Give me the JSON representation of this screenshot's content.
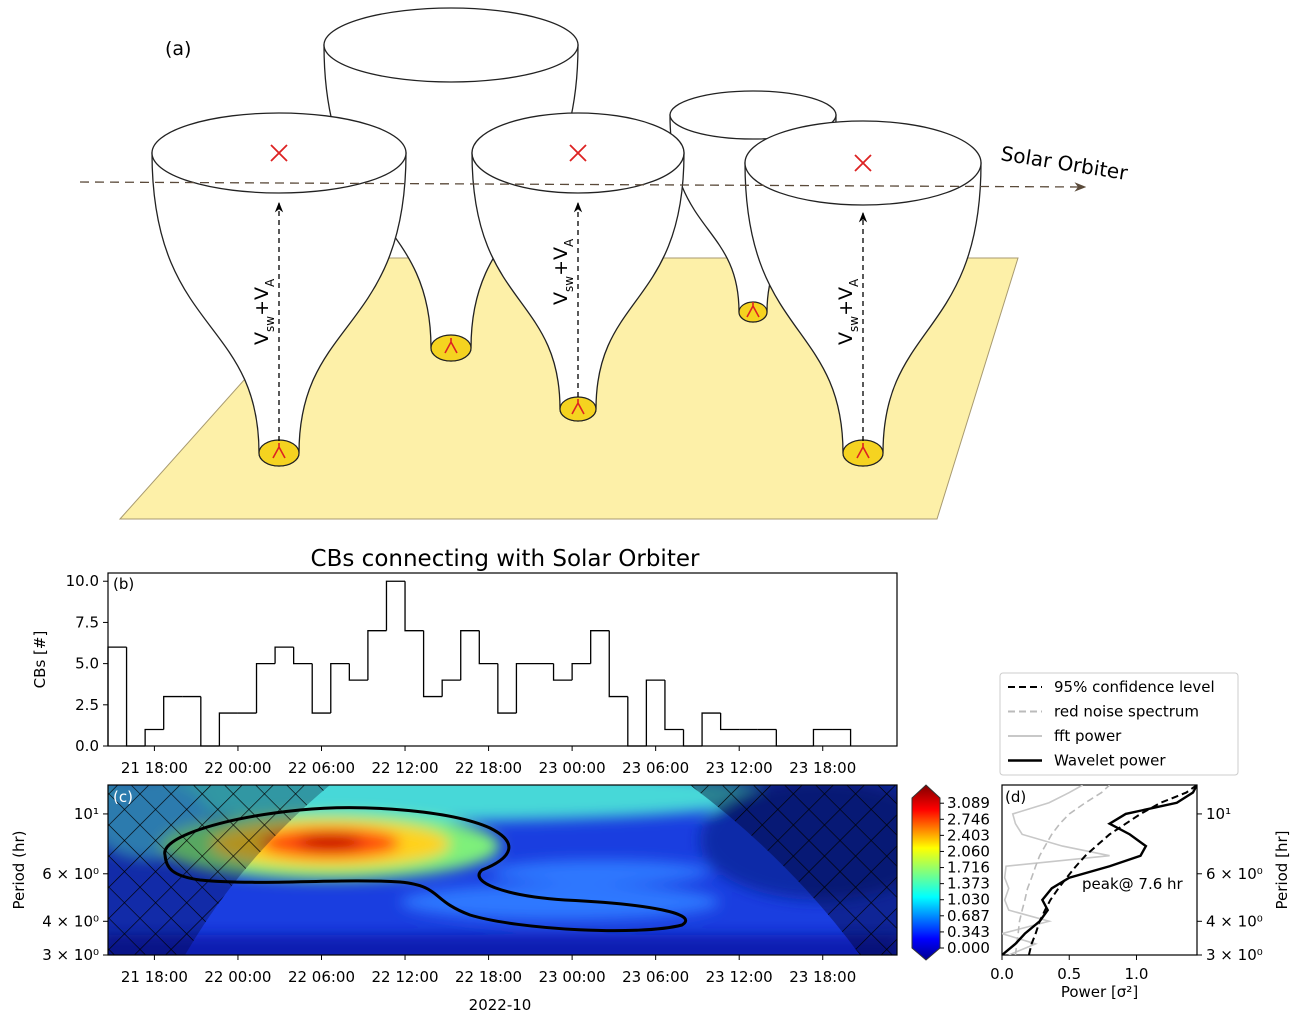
{
  "diagram": {
    "panel_label": "(a)",
    "arrow_label": "Solar Orbiter",
    "velocity_label": [
      "V",
      "sw",
      "+V",
      "A"
    ]
  },
  "chart_data": [
    {
      "type": "histogram",
      "panel_label": "(b)",
      "title": "CBs connecting with Solar Orbiter",
      "ylabel": "CBs [#]",
      "color": "#000000",
      "bins": [
        "2022-10-21 14:40",
        "2022-10-21 16:00",
        "2022-10-21 17:20",
        "2022-10-21 18:40",
        "2022-10-21 20:00",
        "2022-10-21 21:20",
        "2022-10-21 22:40",
        "2022-10-22 00:00",
        "2022-10-22 01:20",
        "2022-10-22 02:40",
        "2022-10-22 04:00",
        "2022-10-22 05:20",
        "2022-10-22 06:40",
        "2022-10-22 08:00",
        "2022-10-22 09:20",
        "2022-10-22 10:40",
        "2022-10-22 12:00",
        "2022-10-22 13:20",
        "2022-10-22 14:40",
        "2022-10-22 16:00",
        "2022-10-22 17:20",
        "2022-10-22 18:40",
        "2022-10-22 20:00",
        "2022-10-22 21:20",
        "2022-10-22 22:40",
        "2022-10-23 00:00",
        "2022-10-23 01:20",
        "2022-10-23 02:40",
        "2022-10-23 04:00",
        "2022-10-23 05:20",
        "2022-10-23 06:40",
        "2022-10-23 08:00",
        "2022-10-23 09:20",
        "2022-10-23 10:40",
        "2022-10-23 12:00",
        "2022-10-23 13:20",
        "2022-10-23 14:40",
        "2022-10-23 16:00",
        "2022-10-23 17:20",
        "2022-10-23 18:40",
        "2022-10-23 20:00"
      ],
      "counts": [
        6,
        0,
        1,
        3,
        3,
        0,
        2,
        2,
        5,
        6,
        5,
        2,
        5,
        4,
        7,
        10,
        7,
        3,
        4,
        7,
        5,
        2,
        5,
        5,
        4,
        5,
        7,
        3,
        0,
        4,
        1,
        0,
        2,
        1,
        1,
        1,
        0,
        0,
        1,
        1
      ],
      "xlim": [
        "2022-10-21 14:40",
        "2022-10-23 23:20"
      ],
      "xticks": [
        {
          "value": "2022-10-21 18:00",
          "label": "21 18:00"
        },
        {
          "value": "2022-10-22 00:00",
          "label": "22 00:00"
        },
        {
          "value": "2022-10-22 06:00",
          "label": "22 06:00"
        },
        {
          "value": "2022-10-22 12:00",
          "label": "22 12:00"
        },
        {
          "value": "2022-10-22 18:00",
          "label": "22 18:00"
        },
        {
          "value": "2022-10-23 00:00",
          "label": "23 00:00"
        },
        {
          "value": "2022-10-23 06:00",
          "label": "23 06:00"
        },
        {
          "value": "2022-10-23 12:00",
          "label": "23 12:00"
        },
        {
          "value": "2022-10-23 18:00",
          "label": "23 18:00"
        }
      ],
      "ylim": [
        0,
        10.5
      ],
      "yticks": [
        {
          "value": 0,
          "label": "0.0"
        },
        2.5,
        {
          "value": 5,
          "label": "5.0"
        },
        7.5,
        {
          "value": 10,
          "label": "10.0"
        }
      ]
    },
    {
      "type": "wavelet",
      "panel_label": "(c)",
      "ylabel": "Period (hr)",
      "xlabel": "2022-10",
      "log_y": true,
      "colormap": "jet",
      "xlim": [
        "2022-10-21 14:40",
        "2022-10-23 23:20"
      ],
      "xticks": [
        {
          "value": "2022-10-21 18:00",
          "label": "21 18:00"
        },
        {
          "value": "2022-10-22 00:00",
          "label": "22 00:00"
        },
        {
          "value": "2022-10-22 06:00",
          "label": "22 06:00"
        },
        {
          "value": "2022-10-22 12:00",
          "label": "22 12:00"
        },
        {
          "value": "2022-10-22 18:00",
          "label": "22 18:00"
        },
        {
          "value": "2022-10-23 00:00",
          "label": "23 00:00"
        },
        {
          "value": "2022-10-23 06:00",
          "label": "23 06:00"
        },
        {
          "value": "2022-10-23 12:00",
          "label": "23 12:00"
        },
        {
          "value": "2022-10-23 18:00",
          "label": "23 18:00"
        }
      ],
      "ylim": [
        3,
        12.8
      ],
      "yticks": [
        {
          "value": 3,
          "label": "3 × 10⁰"
        },
        {
          "value": 4,
          "label": "4 × 10⁰"
        },
        {
          "value": 6,
          "label": "6 × 10⁰"
        },
        {
          "value": 10,
          "label": "10¹"
        }
      ],
      "colorbar": {
        "lim": [
          0,
          3.2
        ],
        "ticks": [
          {
            "value": 0,
            "label": "0.000"
          },
          0.343,
          0.687,
          {
            "value": 1.03,
            "label": "1.030"
          },
          1.373,
          1.716,
          {
            "value": 2.06,
            "label": "2.060"
          },
          2.403,
          2.746,
          3.089
        ]
      }
    },
    {
      "type": "line",
      "panel_label": "(d)",
      "xlabel": "Power [σ²]",
      "ylabel": "Period [hr]",
      "log_y": true,
      "annotation": "peak@ 7.6 hr",
      "legend": "above",
      "y": [
        3,
        3.3,
        3.6,
        4,
        4.4,
        4.8,
        5.3,
        5.8,
        6.4,
        7,
        7.6,
        8.4,
        9.2,
        10,
        11,
        12,
        12.8
      ],
      "xlim": [
        0,
        1.45
      ],
      "xticks": [
        {
          "value": 0,
          "label": "0.0"
        },
        0.5,
        {
          "value": 1,
          "label": "1.0"
        }
      ],
      "ylim": [
        3,
        12.8
      ],
      "yticks": [
        {
          "value": 3,
          "label": "3 × 10⁰"
        },
        {
          "value": 4,
          "label": "4 × 10⁰"
        },
        {
          "value": 6,
          "label": "6 × 10⁰"
        },
        {
          "value": 10,
          "label": "10¹"
        }
      ],
      "series": [
        {
          "name": "95% confidence level",
          "color": "#000000",
          "dash": true,
          "values": [
            0.2,
            0.22,
            0.25,
            0.28,
            0.32,
            0.36,
            0.42,
            0.48,
            0.55,
            0.62,
            0.7,
            0.8,
            0.92,
            1.03,
            1.18,
            1.37,
            1.45
          ]
        },
        {
          "name": "red noise spectrum",
          "color": "#bbbbbb",
          "dash": true,
          "values": [
            0.1,
            0.11,
            0.12,
            0.13,
            0.15,
            0.17,
            0.19,
            0.22,
            0.25,
            0.28,
            0.32,
            0.37,
            0.43,
            0.5,
            0.62,
            0.74,
            0.8
          ]
        },
        {
          "name": "fft power",
          "color": "#c8c8c8",
          "dash": false,
          "values": [
            0.05,
            0.25,
            0.0,
            0.35,
            0.05,
            0.02,
            0.05,
            0.02,
            0.03,
            0.8,
            0.45,
            0.15,
            0.1,
            0.08,
            0.35,
            0.5,
            0.6
          ]
        },
        {
          "name": "Wavelet power",
          "color": "#000000",
          "dash": false,
          "values": [
            0.0,
            0.1,
            0.17,
            0.28,
            0.34,
            0.3,
            0.37,
            0.5,
            0.8,
            1.03,
            1.07,
            0.95,
            0.8,
            0.92,
            1.3,
            1.42,
            1.45
          ]
        }
      ]
    }
  ]
}
